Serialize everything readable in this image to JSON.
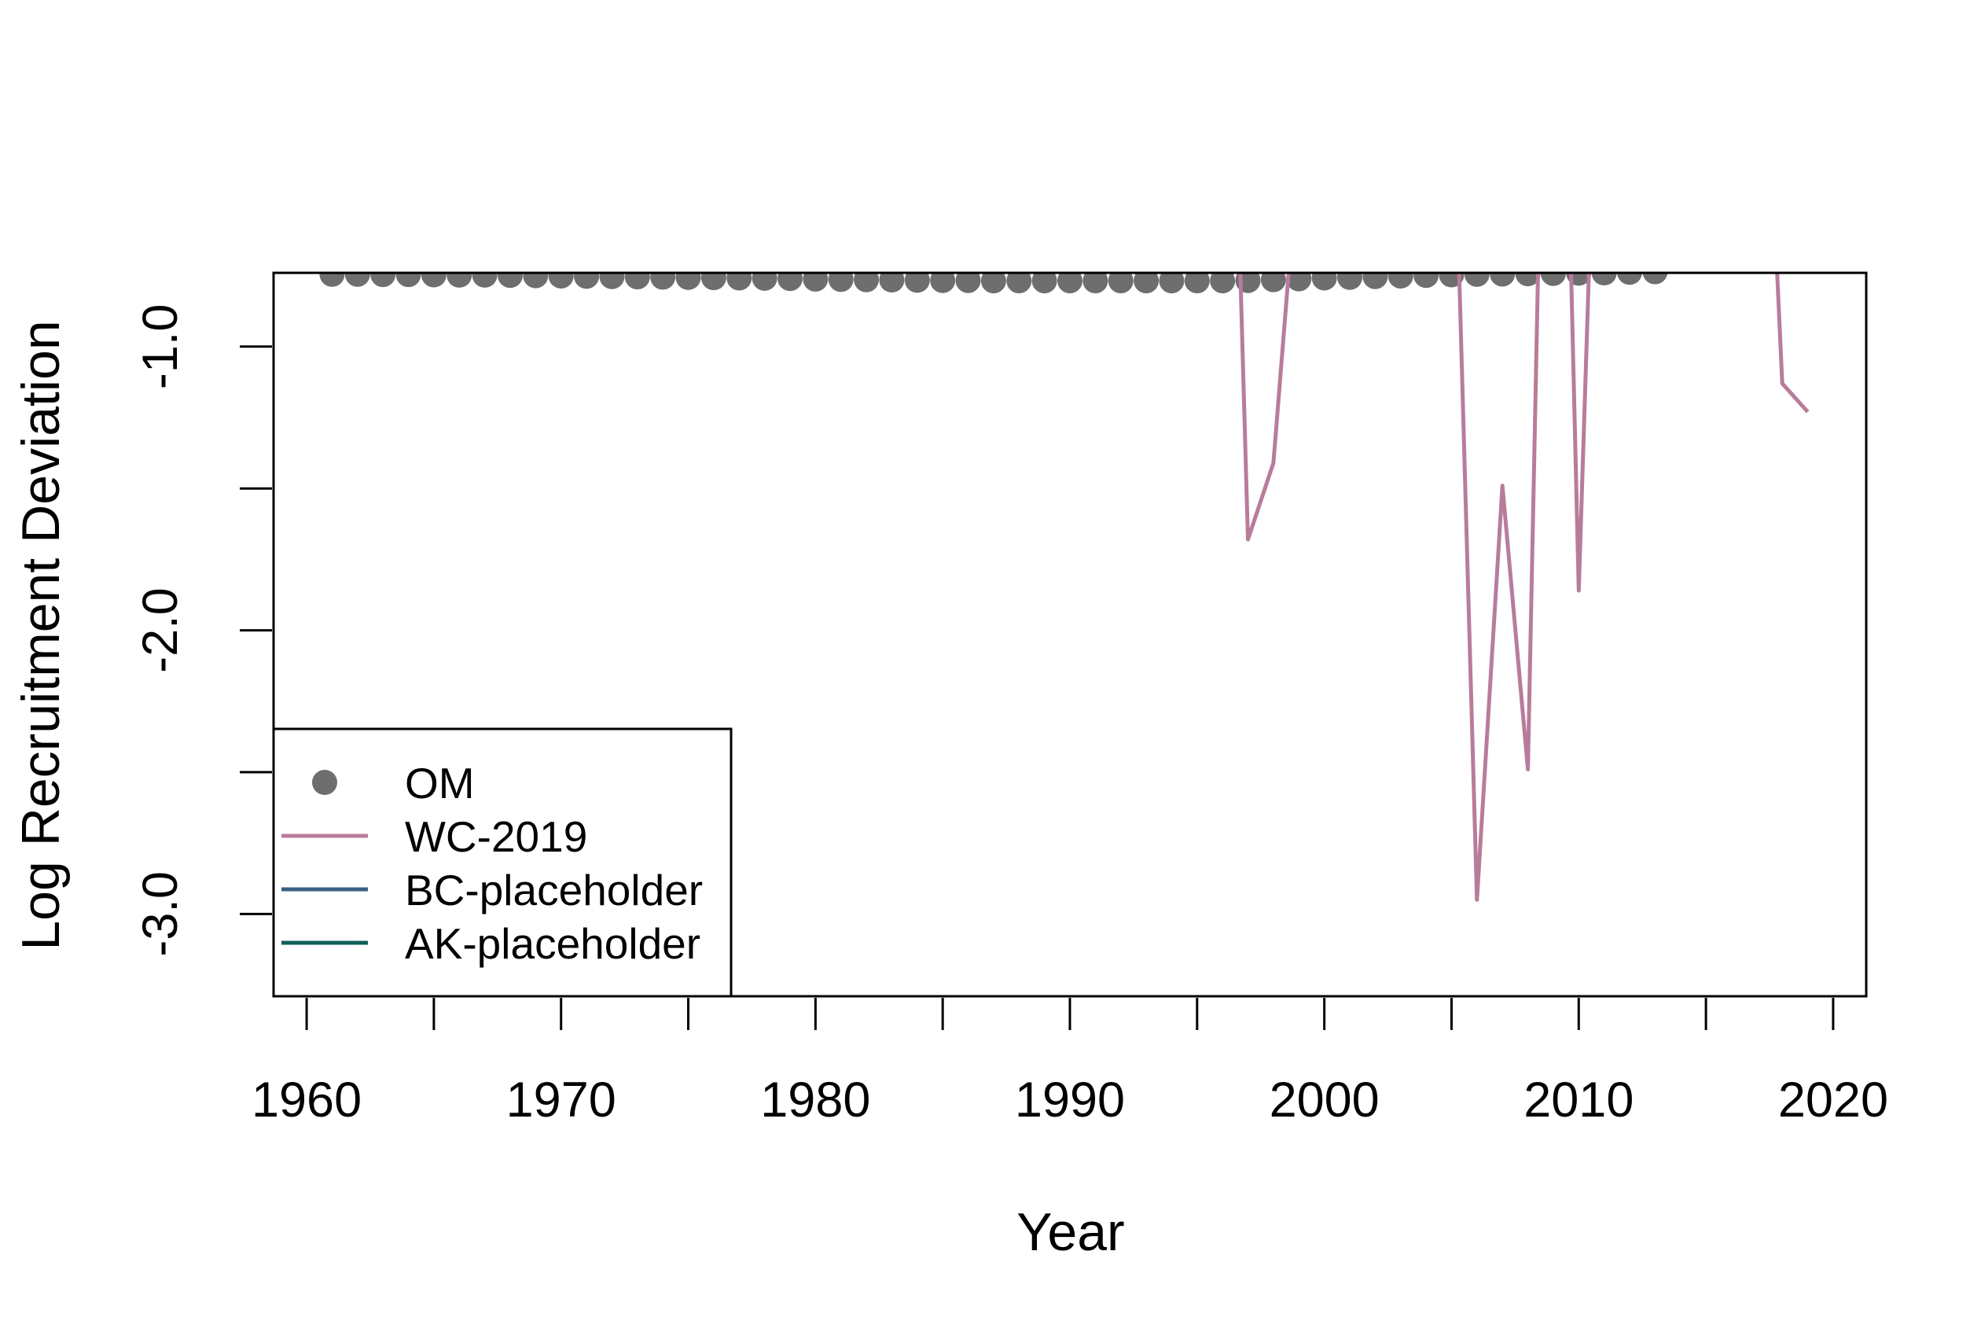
{
  "chart_data": {
    "type": "line",
    "xlabel": "Year",
    "ylabel": "Log Recruitment Deviation",
    "xlim": [
      1958.7,
      2021.3
    ],
    "ylim": [
      -3.29,
      -0.74
    ],
    "x_ticks": [
      1960,
      1970,
      1980,
      1990,
      2000,
      2010,
      2020
    ],
    "x_tick_minor": [
      1965,
      1975,
      1985,
      1995,
      2005,
      2015
    ],
    "y_ticks": [
      -1.0,
      -1.5,
      -2.0,
      -2.5,
      -3.0
    ],
    "y_tick_labels": [
      "-1.0",
      "",
      "-2.0",
      "",
      "-3.0"
    ],
    "legend_position": "bottom-left",
    "series": [
      {
        "name": "OM",
        "style": "points",
        "color": "#6e6e6e",
        "x": [
          1961,
          1962,
          1963,
          1964,
          1965,
          1966,
          1967,
          1968,
          1969,
          1970,
          1971,
          1972,
          1973,
          1974,
          1975,
          1976,
          1977,
          1978,
          1979,
          1980,
          1981,
          1982,
          1983,
          1984,
          1985,
          1986,
          1987,
          1988,
          1989,
          1990,
          1991,
          1992,
          1993,
          1994,
          1995,
          1996,
          1997,
          1998,
          1999,
          2000,
          2001,
          2002,
          2003,
          2004,
          2005,
          2006,
          2007,
          2008,
          2009,
          2010,
          2011,
          2012,
          2013
        ],
        "y": [
          -0.745,
          -0.745,
          -0.746,
          -0.746,
          -0.747,
          -0.748,
          -0.748,
          -0.749,
          -0.75,
          -0.751,
          -0.752,
          -0.753,
          -0.754,
          -0.755,
          -0.756,
          -0.757,
          -0.758,
          -0.759,
          -0.76,
          -0.762,
          -0.763,
          -0.764,
          -0.765,
          -0.766,
          -0.767,
          -0.767,
          -0.768,
          -0.768,
          -0.768,
          -0.768,
          -0.768,
          -0.768,
          -0.768,
          -0.768,
          -0.768,
          -0.768,
          -0.767,
          -0.764,
          -0.761,
          -0.758,
          -0.756,
          -0.753,
          -0.751,
          -0.749,
          -0.747,
          -0.745,
          -0.744,
          -0.743,
          -0.742,
          -0.741,
          -0.74,
          -0.738,
          -0.736
        ]
      },
      {
        "name": "WC-2019",
        "style": "line",
        "color": "#b87c9b",
        "segments": [
          {
            "x": [
              1996.7,
              1997.0,
              1998.0,
              1998.6
            ],
            "y": [
              -0.74,
              -1.68,
              -1.41,
              -0.74
            ]
          },
          {
            "x": [
              2005.3,
              2006.0,
              2007.0,
              2008.0,
              2008.4
            ],
            "y": [
              -0.74,
              -2.95,
              -1.49,
              -2.49,
              -0.74
            ]
          },
          {
            "x": [
              2009.7,
              2010.0,
              2010.4
            ],
            "y": [
              -0.74,
              -1.86,
              -0.74
            ]
          },
          {
            "x": [
              2017.8,
              2018.0,
              2019.0
            ],
            "y": [
              -0.74,
              -1.13,
              -1.23
            ]
          }
        ]
      },
      {
        "name": "BC-placeholder",
        "style": "line",
        "color": "#3a5f86",
        "segments": []
      },
      {
        "name": "AK-placeholder",
        "style": "line",
        "color": "#0f5f58",
        "segments": []
      }
    ]
  }
}
